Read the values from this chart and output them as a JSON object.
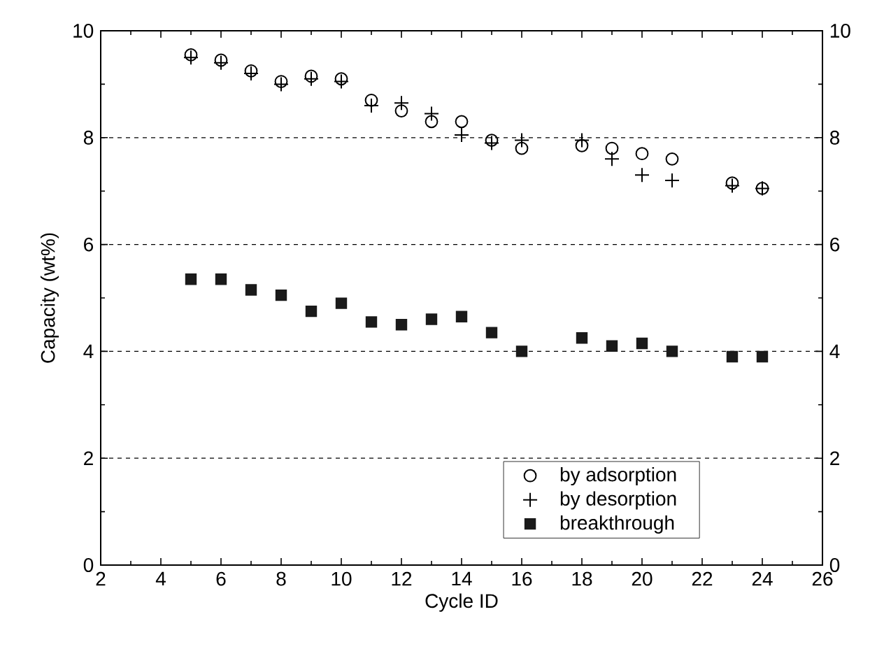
{
  "chart_data": {
    "type": "scatter",
    "xlabel": "Cycle ID",
    "ylabel": "Capacity (wt%)",
    "x": [
      5,
      6,
      7,
      8,
      9,
      10,
      11,
      12,
      13,
      14,
      15,
      16,
      18,
      19,
      20,
      21,
      23,
      24
    ],
    "series": [
      {
        "name": "by adsorption",
        "color": "#000000",
        "marker": "circle",
        "values": [
          9.55,
          9.45,
          9.25,
          9.05,
          9.15,
          9.1,
          8.7,
          8.5,
          8.3,
          8.3,
          7.95,
          7.8,
          7.85,
          7.8,
          7.7,
          7.6,
          7.15,
          7.05
        ]
      },
      {
        "name": "by desorption",
        "color": "#000000",
        "marker": "cross",
        "values": [
          9.5,
          9.4,
          9.2,
          9.0,
          9.1,
          9.05,
          8.6,
          8.65,
          8.45,
          8.05,
          7.9,
          7.95,
          7.95,
          7.6,
          7.3,
          7.2,
          7.1,
          7.05
        ]
      },
      {
        "name": "breakthrough",
        "color": "#1a1a1a",
        "marker": "square",
        "values": [
          5.35,
          5.35,
          5.15,
          5.05,
          4.75,
          4.9,
          4.55,
          4.5,
          4.6,
          4.65,
          4.35,
          4.0,
          4.25,
          4.1,
          4.15,
          4.0,
          3.9,
          3.9
        ]
      }
    ],
    "xlim": [
      2,
      26
    ],
    "xticks": [
      2,
      4,
      6,
      8,
      10,
      12,
      14,
      16,
      18,
      20,
      22,
      24,
      26
    ],
    "ylim": [
      0,
      10
    ],
    "yticks": [
      0,
      2,
      4,
      6,
      8,
      10
    ],
    "y2lim": [
      0,
      10
    ],
    "y2ticks": [
      0,
      2,
      4,
      6,
      8,
      10
    ],
    "grid": "y",
    "legend": "bottom right"
  }
}
